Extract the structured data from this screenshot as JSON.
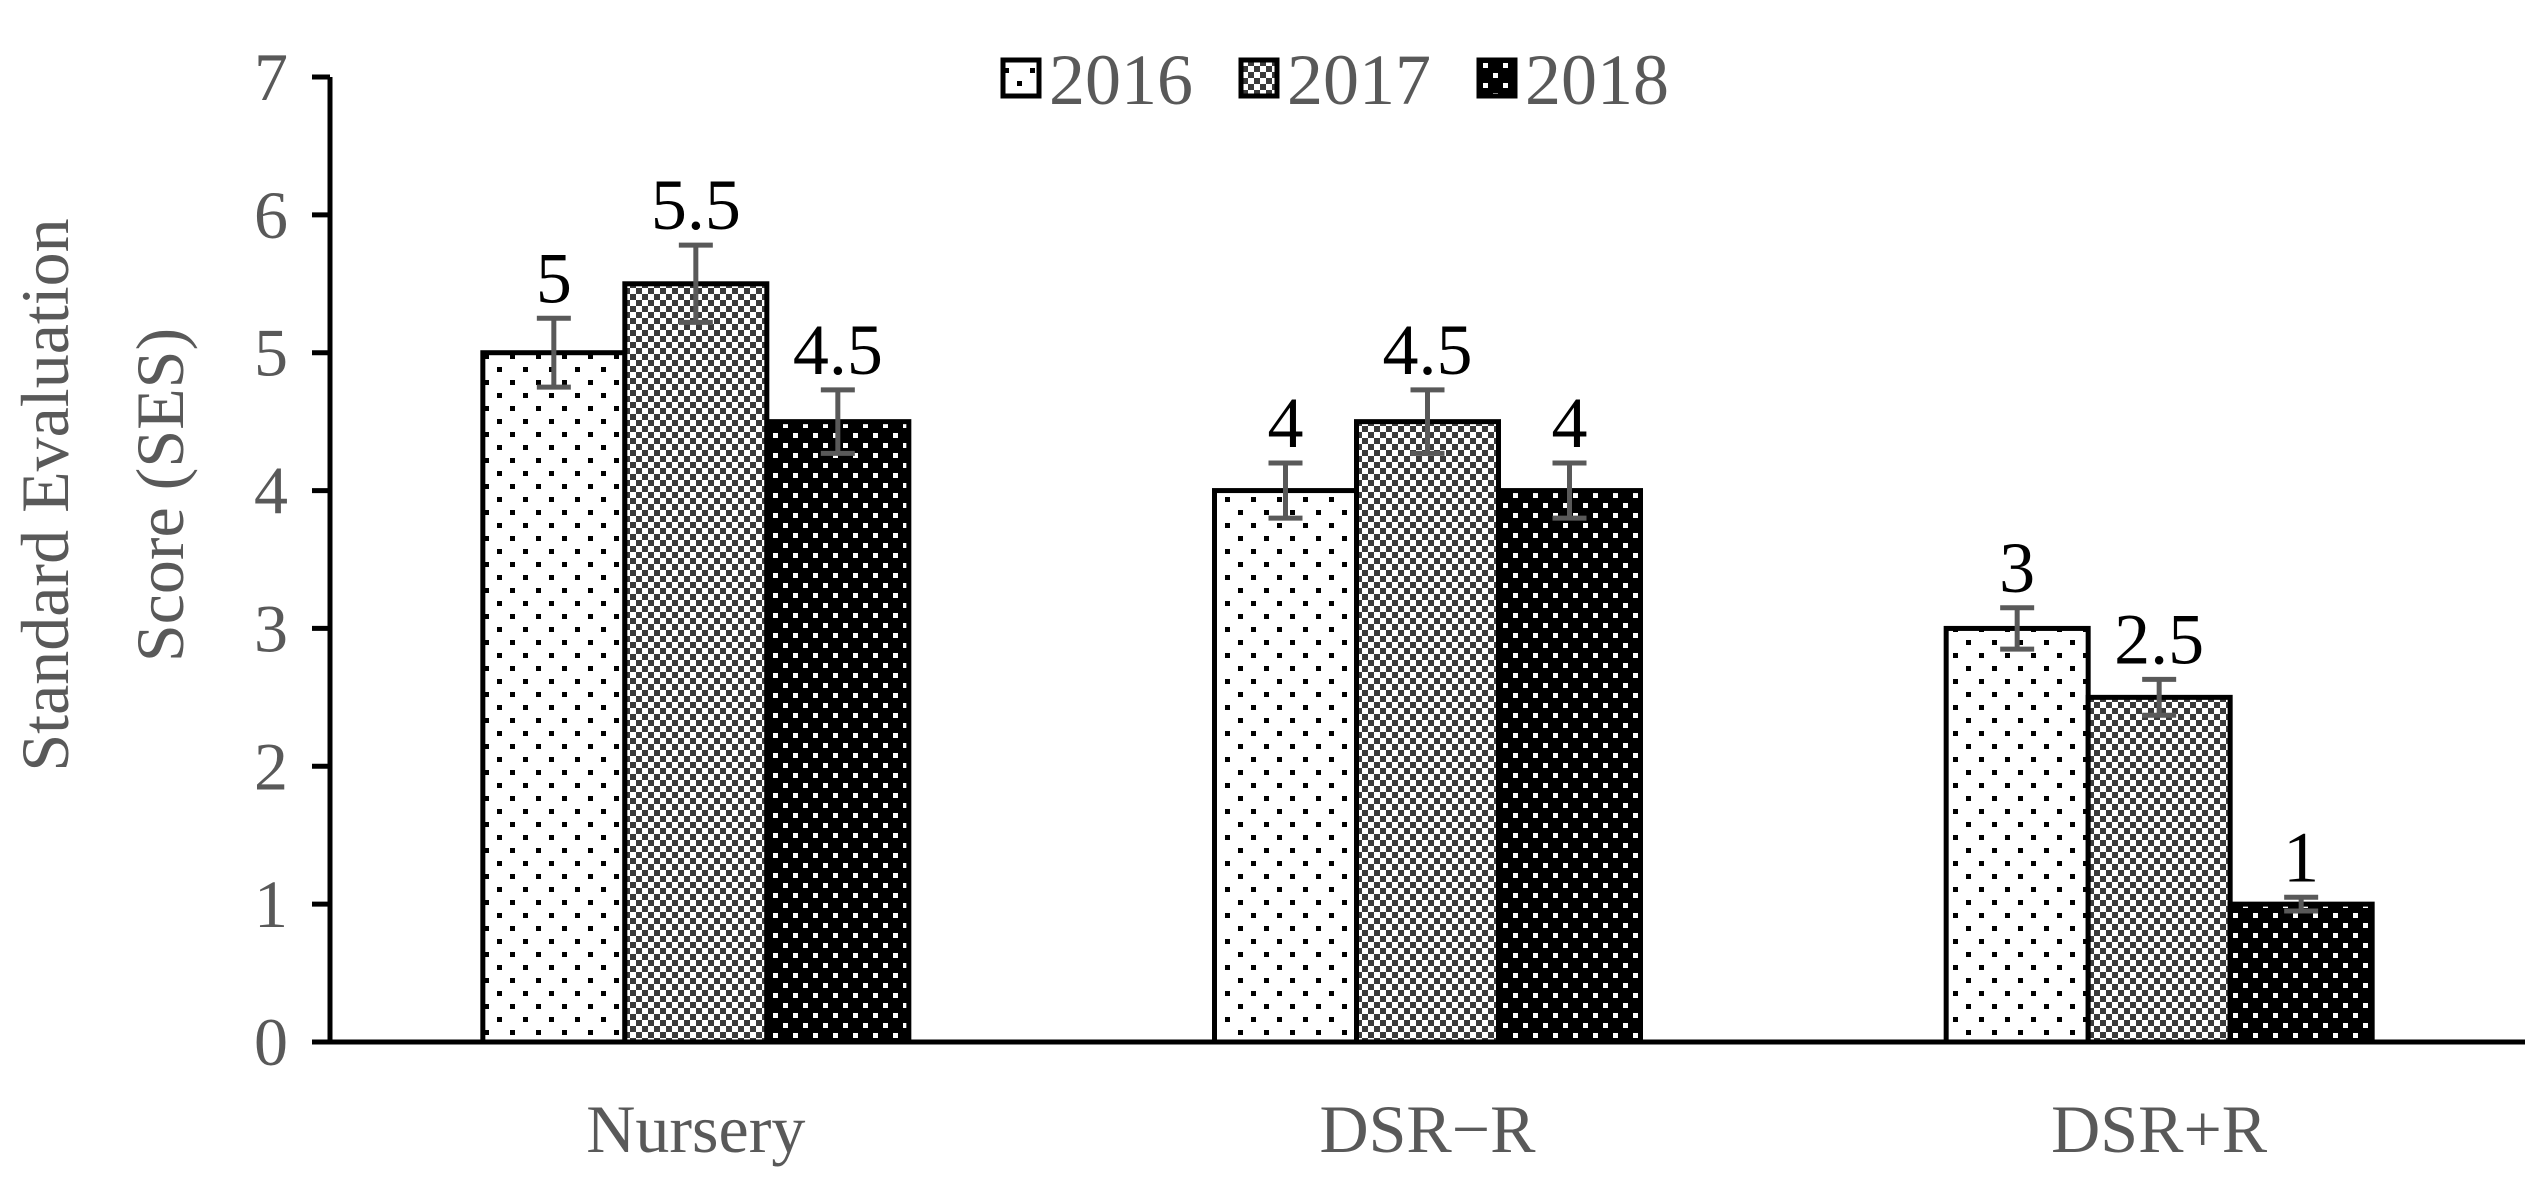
{
  "chart_data": {
    "type": "bar",
    "title": "",
    "xlabel": "",
    "ylabel_lines": [
      "Standard Evaluation",
      "Score (SES)"
    ],
    "ylim": [
      0,
      7
    ],
    "yticks": [
      "0",
      "1",
      "2",
      "3",
      "4",
      "5",
      "6",
      "7"
    ],
    "categories": [
      "Nursery",
      "DSR−R",
      "DSR+R"
    ],
    "series": [
      {
        "name": "2016",
        "values": [
          5,
          4,
          3
        ],
        "errors": [
          0.25,
          0.2,
          0.15
        ],
        "labels": [
          "5",
          "4",
          "3"
        ],
        "pattern": "sparse-dots"
      },
      {
        "name": "2017",
        "values": [
          5.5,
          4.5,
          2.5
        ],
        "errors": [
          0.28,
          0.23,
          0.13
        ],
        "labels": [
          "5.5",
          "4.5",
          "2.5"
        ],
        "pattern": "checker"
      },
      {
        "name": "2018",
        "values": [
          4.5,
          4,
          1
        ],
        "errors": [
          0.23,
          0.2,
          0.05
        ],
        "labels": [
          "4.5",
          "4",
          "1"
        ],
        "pattern": "dark-dots"
      }
    ],
    "legend_position": "top-center",
    "grid": false,
    "colors": {
      "bar_stroke": "#000000",
      "axis": "#000000",
      "error_bar": "#595959",
      "text": "#595959"
    }
  }
}
